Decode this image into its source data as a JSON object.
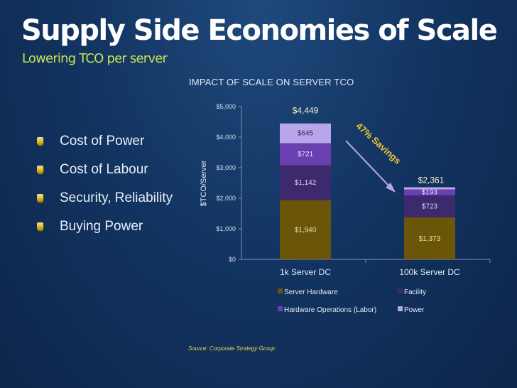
{
  "slide": {
    "title": "Supply Side Economies of Scale",
    "subtitle": "Lowering TCO per server",
    "bullets": [
      {
        "text": "Cost of Power"
      },
      {
        "text": "Cost of Labour"
      },
      {
        "text": "Security, Reliability"
      },
      {
        "text": "Buying Power"
      }
    ],
    "source": "Source: Corporate Strategy Group"
  },
  "colors": {
    "server_hardware": "#6b5508",
    "facility": "#3d2a6e",
    "labor": "#6a3fb0",
    "power": "#b9a6e8",
    "title_accent": "#c6e356",
    "savings_text": "#f0c838",
    "arrow": "#b9a6e8"
  },
  "chart_data": {
    "type": "bar",
    "stacked": true,
    "title": "IMPACT OF SCALE ON SERVER TCO",
    "ylabel": "$TCO/Server",
    "xlabel": "",
    "ylim": [
      0,
      5000
    ],
    "yticks": [
      "$0",
      "$1,000",
      "$2,000",
      "$3,000",
      "$4,000",
      "$5,000"
    ],
    "ytick_values": [
      0,
      1000,
      2000,
      3000,
      4000,
      5000
    ],
    "categories": [
      "1k Server DC",
      "100k Server DC"
    ],
    "series": [
      {
        "name": "Server Hardware",
        "values": [
          1940,
          1373
        ],
        "labels": [
          "$1,940",
          "$1,373"
        ]
      },
      {
        "name": "Facility",
        "values": [
          1142,
          723
        ],
        "labels": [
          "$1,142",
          "$723"
        ]
      },
      {
        "name": "Hardware Operations (Labor)",
        "values": [
          721,
          193
        ],
        "labels": [
          "$721",
          "$193"
        ]
      },
      {
        "name": "Power",
        "values": [
          645,
          72
        ],
        "labels": [
          "$645",
          ""
        ]
      }
    ],
    "totals": [
      "$4,449",
      "$2,361"
    ],
    "annotation": "47% Savings",
    "legend_position": "bottom",
    "grid": false
  }
}
